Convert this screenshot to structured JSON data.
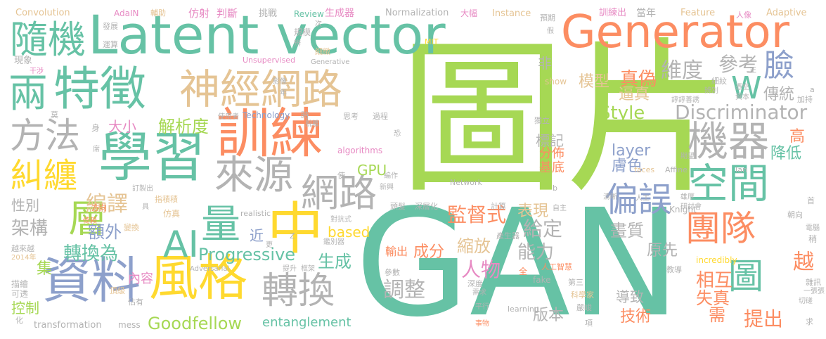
{
  "palette": {
    "green": "#a6d854",
    "teal": "#66c2a5",
    "orange": "#fc8d62",
    "blue": "#8da0cb",
    "pink": "#e78ac3",
    "yellow": "#ffd92f",
    "tan": "#e5c494",
    "gray": "#b3b3b3",
    "darkgray": "#9a9a9a"
  },
  "words": [
    {
      "text": "圖片",
      "color": "green"
    },
    {
      "text": "GAN",
      "color": "teal"
    },
    {
      "text": "Latent vector",
      "color": "teal"
    },
    {
      "text": "Generator",
      "color": "orange"
    },
    {
      "text": "學習",
      "color": "teal"
    },
    {
      "text": "訓練",
      "color": "orange"
    },
    {
      "text": "特徵",
      "color": "teal"
    },
    {
      "text": "神經網路",
      "color": "tan"
    },
    {
      "text": "資料",
      "color": "blue"
    },
    {
      "text": "風格",
      "color": "yellow"
    },
    {
      "text": "機器",
      "color": "gray"
    },
    {
      "text": "空間",
      "color": "teal"
    },
    {
      "text": "網路",
      "color": "gray"
    },
    {
      "text": "轉換",
      "color": "gray"
    },
    {
      "text": "中",
      "color": "yellow"
    },
    {
      "text": "方法",
      "color": "gray"
    },
    {
      "text": "糾纏",
      "color": "yellow"
    },
    {
      "text": "來源",
      "color": "gray"
    },
    {
      "text": "兩",
      "color": "teal"
    },
    {
      "text": "隨機",
      "color": "teal"
    },
    {
      "text": "量",
      "color": "teal"
    },
    {
      "text": "AI",
      "color": "teal"
    },
    {
      "text": "層",
      "color": "green"
    },
    {
      "text": "偏誤",
      "color": "blue"
    },
    {
      "text": "團隊",
      "color": "orange"
    },
    {
      "text": "圖",
      "color": "teal"
    },
    {
      "text": "Discriminator",
      "color": "gray"
    },
    {
      "text": "Style",
      "color": "green"
    },
    {
      "text": "臉",
      "color": "blue"
    },
    {
      "text": "W",
      "color": "teal"
    },
    {
      "text": "維度",
      "color": "gray"
    },
    {
      "text": "參考",
      "color": "gray"
    },
    {
      "text": "真偽",
      "color": "orange"
    },
    {
      "text": "模型",
      "color": "tan"
    },
    {
      "text": "逼真",
      "color": "tan"
    },
    {
      "text": "傳統",
      "color": "gray"
    },
    {
      "text": "編譯",
      "color": "tan"
    },
    {
      "text": "解析度",
      "color": "green"
    },
    {
      "text": "大小",
      "color": "pink"
    },
    {
      "text": "架構",
      "color": "gray"
    },
    {
      "text": "性別",
      "color": "gray"
    },
    {
      "text": "轉換為",
      "color": "teal"
    },
    {
      "text": "額外",
      "color": "blue"
    },
    {
      "text": "集",
      "color": "green"
    },
    {
      "text": "Progressive",
      "color": "teal"
    },
    {
      "text": "生成",
      "color": "teal"
    },
    {
      "text": "調整",
      "color": "gray"
    },
    {
      "text": "縮放",
      "color": "tan"
    },
    {
      "text": "成分",
      "color": "orange"
    },
    {
      "text": "監督式",
      "color": "orange"
    },
    {
      "text": "表現",
      "color": "tan"
    },
    {
      "text": "給定",
      "color": "gray"
    },
    {
      "text": "畫質",
      "color": "gray"
    },
    {
      "text": "能力",
      "color": "gray"
    },
    {
      "text": "原先",
      "color": "gray"
    },
    {
      "text": "人物",
      "color": "pink"
    },
    {
      "text": "相互",
      "color": "orange"
    },
    {
      "text": "失真",
      "color": "orange"
    },
    {
      "text": "越",
      "color": "orange"
    },
    {
      "text": "需",
      "color": "orange"
    },
    {
      "text": "提出",
      "color": "orange"
    },
    {
      "text": "技術",
      "color": "orange"
    },
    {
      "text": "版本",
      "color": "gray"
    },
    {
      "text": "導致",
      "color": "gray"
    },
    {
      "text": "控制",
      "color": "green"
    },
    {
      "text": "Goodfellow",
      "color": "green"
    },
    {
      "text": "entanglement",
      "color": "teal"
    },
    {
      "text": "layer",
      "color": "blue"
    },
    {
      "text": "GPU",
      "color": "green"
    },
    {
      "text": "based",
      "color": "yellow"
    },
    {
      "text": "標記",
      "color": "gray"
    },
    {
      "text": "分佈",
      "color": "orange"
    },
    {
      "text": "基底",
      "color": "orange"
    },
    {
      "text": "膚色",
      "color": "blue"
    },
    {
      "text": "降低",
      "color": "teal"
    },
    {
      "text": "高",
      "color": "orange"
    },
    {
      "text": "非",
      "color": "gray"
    },
    {
      "text": "內容",
      "color": "pink"
    },
    {
      "text": "近",
      "color": "blue"
    },
    {
      "text": "輸出",
      "color": "orange"
    },
    {
      "text": "Convolution",
      "color": "tan"
    },
    {
      "text": "AdaIN",
      "color": "pink"
    },
    {
      "text": "輔助",
      "color": "tan"
    },
    {
      "text": "仿射",
      "color": "pink"
    },
    {
      "text": "判斷",
      "color": "pink"
    },
    {
      "text": "挑戰",
      "color": "gray"
    },
    {
      "text": "Review",
      "color": "teal"
    },
    {
      "text": "生成器",
      "color": "pink"
    },
    {
      "text": "Normalization",
      "color": "gray"
    },
    {
      "text": "大幅",
      "color": "pink"
    },
    {
      "text": "Instance",
      "color": "tan"
    },
    {
      "text": "預期",
      "color": "gray"
    },
    {
      "text": "訓練出",
      "color": "pink"
    },
    {
      "text": "當年",
      "color": "gray"
    },
    {
      "text": "人像",
      "color": "pink"
    },
    {
      "text": "Adaptive",
      "color": "tan"
    },
    {
      "text": "Feature",
      "color": "tan"
    },
    {
      "text": "發展",
      "color": "gray"
    },
    {
      "text": "運算",
      "color": "gray"
    },
    {
      "text": "現象",
      "color": "gray"
    },
    {
      "text": "干涉",
      "color": "pink"
    },
    {
      "text": "Unsupervised",
      "color": "pink"
    },
    {
      "text": "Generative",
      "color": "gray"
    },
    {
      "text": "規模",
      "color": "gray"
    },
    {
      "text": "細緻",
      "color": "tan"
    },
    {
      "text": "MIT",
      "color": "yellow"
    },
    {
      "text": "show",
      "color": "tan"
    },
    {
      "text": "影像",
      "color": "gray"
    },
    {
      "text": "使用者",
      "color": "gray"
    },
    {
      "text": "Technology",
      "color": "blue"
    },
    {
      "text": "時",
      "color": "gray"
    },
    {
      "text": "思考",
      "color": "gray"
    },
    {
      "text": "過程",
      "color": "gray"
    },
    {
      "text": "algorithms",
      "color": "pink"
    },
    {
      "text": "身",
      "color": "gray"
    },
    {
      "text": "訂製出",
      "color": "gray"
    },
    {
      "text": "指積積",
      "color": "tan"
    },
    {
      "text": "仿真",
      "color": "tan"
    },
    {
      "text": "變換",
      "color": "tan"
    },
    {
      "text": "realistic",
      "color": "gray"
    },
    {
      "text": "對抗式",
      "color": "gray"
    },
    {
      "text": "鑑別器",
      "color": "gray"
    },
    {
      "text": "Adversarial",
      "color": "gray"
    },
    {
      "text": "越來越",
      "color": "gray"
    },
    {
      "text": "2014年",
      "color": "tan"
    },
    {
      "text": "頂級",
      "color": "tan"
    },
    {
      "text": "描繪",
      "color": "gray"
    },
    {
      "text": "可透",
      "color": "gray"
    },
    {
      "text": "佔有",
      "color": "gray"
    },
    {
      "text": "transformation",
      "color": "gray"
    },
    {
      "text": "mess",
      "color": "gray"
    },
    {
      "text": "化",
      "color": "gray"
    },
    {
      "text": "提升",
      "color": "gray"
    },
    {
      "text": "框架",
      "color": "gray"
    },
    {
      "text": "Network",
      "color": "gray"
    },
    {
      "text": "faces",
      "color": "tan"
    },
    {
      "text": "Affine",
      "color": "gray"
    },
    {
      "text": "Ian",
      "color": "gray"
    },
    {
      "text": "incredibly",
      "color": "yellow"
    },
    {
      "text": "fake",
      "color": "gray"
    },
    {
      "text": "learning",
      "color": "gray"
    },
    {
      "text": "Knight",
      "color": "gray"
    },
    {
      "text": "產生器",
      "color": "gray"
    },
    {
      "text": "人工智慧",
      "color": "orange"
    },
    {
      "text": "參數",
      "color": "gray"
    },
    {
      "text": "深度",
      "color": "gray"
    },
    {
      "text": "需求",
      "color": "gray"
    },
    {
      "text": "平行",
      "color": "gray"
    },
    {
      "text": "嚴峻",
      "color": "gray"
    },
    {
      "text": "教導",
      "color": "gray"
    },
    {
      "text": "切磋",
      "color": "gray"
    },
    {
      "text": "雜訊",
      "color": "gray"
    },
    {
      "text": "一張張",
      "color": "gray"
    },
    {
      "text": "事物",
      "color": "orange"
    },
    {
      "text": "項",
      "color": "gray"
    },
    {
      "text": "求",
      "color": "gray"
    },
    {
      "text": "方向",
      "color": "orange"
    },
    {
      "text": "倚賴",
      "color": "orange"
    },
    {
      "text": "頭髮",
      "color": "gray"
    },
    {
      "text": "深層化",
      "color": "gray"
    },
    {
      "text": "計算",
      "color": "gray"
    },
    {
      "text": "獨立",
      "color": "gray"
    },
    {
      "text": "科學家",
      "color": "tan"
    },
    {
      "text": "細紋",
      "color": "gray"
    },
    {
      "text": "辨別",
      "color": "gray"
    },
    {
      "text": "憑空",
      "color": "gray"
    },
    {
      "text": "資本",
      "color": "gray"
    },
    {
      "text": "加持",
      "color": "gray"
    },
    {
      "text": "朝向",
      "color": "gray"
    },
    {
      "text": "電腦",
      "color": "gray"
    },
    {
      "text": "稍",
      "color": "gray"
    },
    {
      "text": "諄諄善誘",
      "color": "gray"
    },
    {
      "text": "期望",
      "color": "gray"
    },
    {
      "text": "雄厚",
      "color": "gray"
    },
    {
      "text": "研討會",
      "color": "gray"
    },
    {
      "text": "首",
      "color": "gray"
    },
    {
      "text": "自主",
      "color": "gray"
    },
    {
      "text": "使",
      "color": "gray"
    },
    {
      "text": "新興",
      "color": "gray"
    },
    {
      "text": "b",
      "color": "gray"
    },
    {
      "text": "Z",
      "color": "gray"
    },
    {
      "text": "全",
      "color": "orange"
    },
    {
      "text": "第三",
      "color": "gray"
    },
    {
      "text": "更",
      "color": "gray"
    },
    {
      "text": "具",
      "color": "gray"
    },
    {
      "text": "恐",
      "color": "gray"
    },
    {
      "text": "莫",
      "color": "gray"
    },
    {
      "text": "席",
      "color": "gray"
    },
    {
      "text": "脫離",
      "color": "gray"
    },
    {
      "text": "年",
      "color": "gray"
    },
    {
      "text": "次",
      "color": "gray"
    },
    {
      "text": "辨",
      "color": "gray"
    },
    {
      "text": "清晰",
      "color": "gray"
    },
    {
      "text": "人工",
      "color": "gray"
    },
    {
      "text": "正",
      "color": "gray"
    },
    {
      "text": "a",
      "color": "gray"
    },
    {
      "text": "假",
      "color": "gray"
    },
    {
      "text": "編作",
      "color": "gray"
    }
  ]
}
